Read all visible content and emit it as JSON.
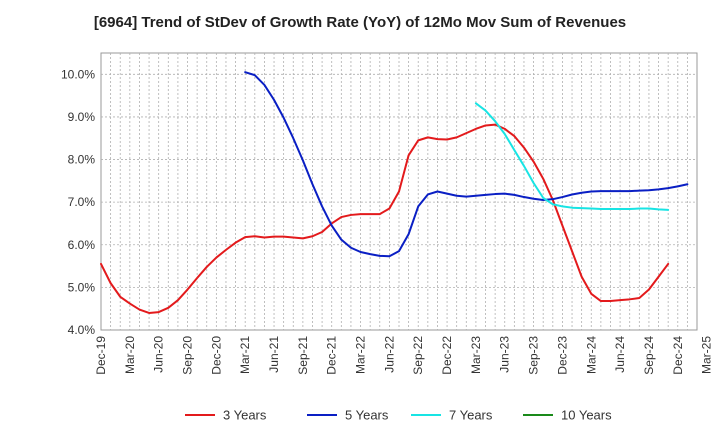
{
  "chart_data": {
    "type": "line",
    "title": "[6964]  Trend of StDev of Growth Rate (YoY) of 12Mo Mov Sum of Revenues",
    "xlabel": "",
    "ylabel": "",
    "ylim": [
      4.0,
      10.5
    ],
    "y_ticks": [
      4.0,
      5.0,
      6.0,
      7.0,
      8.0,
      9.0,
      10.0
    ],
    "y_tick_labels": [
      "4.0%",
      "5.0%",
      "6.0%",
      "7.0%",
      "8.0%",
      "9.0%",
      "10.0%"
    ],
    "x_tick_labels": [
      "Dec-19",
      "Mar-20",
      "Jun-20",
      "Sep-20",
      "Dec-20",
      "Mar-21",
      "Jun-21",
      "Sep-21",
      "Dec-21",
      "Mar-22",
      "Jun-22",
      "Sep-22",
      "Dec-22",
      "Mar-23",
      "Jun-23",
      "Sep-23",
      "Dec-23",
      "Mar-24",
      "Jun-24",
      "Sep-24",
      "Dec-24",
      "Mar-25"
    ],
    "x_months_start": "Dec-19",
    "x_months_count": 63,
    "grid": true,
    "legend_position": "bottom",
    "series": [
      {
        "name": "3 Years",
        "color": "#e31a1c",
        "start_index": 0,
        "values": [
          5.55,
          5.1,
          4.78,
          4.62,
          4.48,
          4.4,
          4.42,
          4.52,
          4.7,
          4.95,
          5.22,
          5.48,
          5.7,
          5.88,
          6.05,
          6.18,
          6.2,
          6.17,
          6.19,
          6.19,
          6.17,
          6.15,
          6.2,
          6.3,
          6.5,
          6.65,
          6.7,
          6.72,
          6.72,
          6.72,
          6.85,
          7.25,
          8.1,
          8.45,
          8.52,
          8.48,
          8.47,
          8.52,
          8.62,
          8.72,
          8.8,
          8.82,
          8.72,
          8.55,
          8.28,
          7.95,
          7.55,
          7.05,
          6.45,
          5.85,
          5.25,
          4.85,
          4.68,
          4.68,
          4.7,
          4.72,
          4.75,
          4.95,
          5.25,
          5.55
        ]
      },
      {
        "name": "5 Years",
        "color": "#0a1fc4",
        "start_index": 15,
        "values": [
          10.05,
          9.98,
          9.75,
          9.4,
          8.98,
          8.5,
          7.98,
          7.42,
          6.9,
          6.45,
          6.12,
          5.93,
          5.83,
          5.78,
          5.74,
          5.73,
          5.85,
          6.25,
          6.9,
          7.18,
          7.25,
          7.2,
          7.15,
          7.13,
          7.15,
          7.17,
          7.19,
          7.2,
          7.17,
          7.12,
          7.08,
          7.05,
          7.07,
          7.12,
          7.18,
          7.22,
          7.25,
          7.26,
          7.26,
          7.26,
          7.26,
          7.27,
          7.28,
          7.3,
          7.33,
          7.37,
          7.42
        ]
      },
      {
        "name": "7 Years",
        "color": "#18e4e4",
        "start_index": 39,
        "values": [
          9.32,
          9.15,
          8.9,
          8.6,
          8.22,
          7.85,
          7.45,
          7.1,
          6.95,
          6.9,
          6.87,
          6.86,
          6.85,
          6.84,
          6.84,
          6.84,
          6.84,
          6.85,
          6.85,
          6.83,
          6.82
        ]
      },
      {
        "name": "10 Years",
        "color": "#1a8a1a",
        "start_index": 0,
        "values": []
      }
    ]
  }
}
